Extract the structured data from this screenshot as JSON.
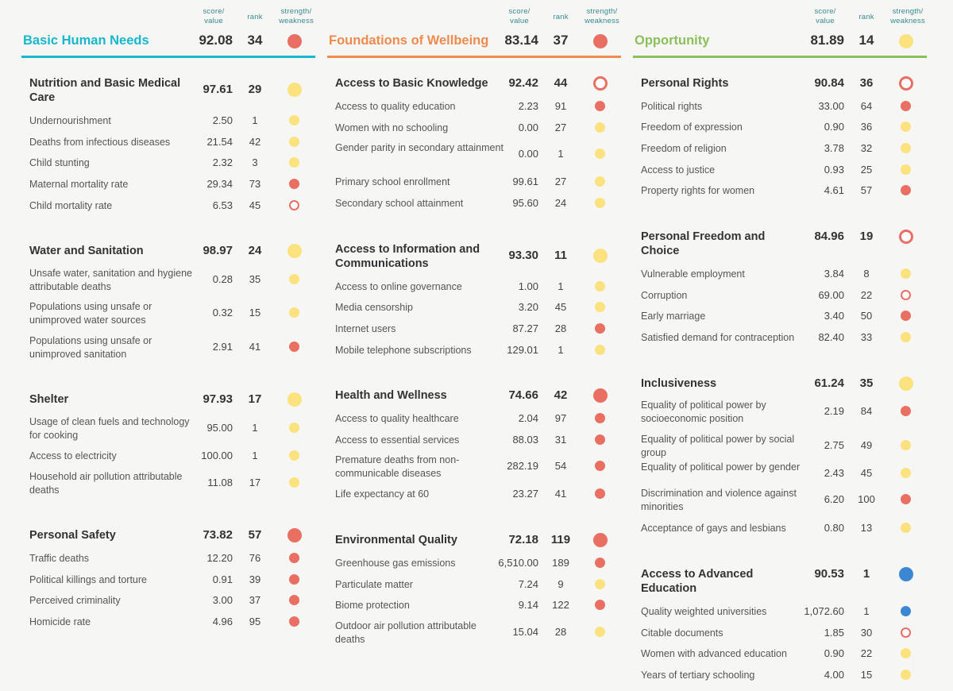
{
  "header_labels": {
    "score": "score/\nvalue",
    "rank": "rank",
    "sw": "strength/\nweakness"
  },
  "colors": {
    "bhn": "#17b7cd",
    "fow": "#ef8b4e",
    "opp": "#8bbf5b",
    "yellow": "#fce27e",
    "red": "#ea6f63",
    "blue": "#3b87d3"
  },
  "dimensions": [
    {
      "title": "Basic Human Needs",
      "score": "92.08",
      "rank": "34",
      "status": "red",
      "components": [
        {
          "title": "Nutrition and Basic Medical Care",
          "score": "97.61",
          "rank": "29",
          "status": "yellow",
          "indicators": [
            {
              "name": "Undernourishment",
              "value": "2.50",
              "rank": "1",
              "status": "yellow"
            },
            {
              "name": "Deaths from infectious diseases",
              "value": "21.54",
              "rank": "42",
              "status": "yellow"
            },
            {
              "name": "Child stunting",
              "value": "2.32",
              "rank": "3",
              "status": "yellow"
            },
            {
              "name": "Maternal mortality rate",
              "value": "29.34",
              "rank": "73",
              "status": "red"
            },
            {
              "name": "Child mortality rate",
              "value": "6.53",
              "rank": "45",
              "status": "ring"
            }
          ]
        },
        {
          "title": "Water and Sanitation",
          "score": "98.97",
          "rank": "24",
          "status": "yellow",
          "indicators": [
            {
              "name": "Unsafe water, sanitation and hygiene attributable deaths",
              "value": "0.28",
              "rank": "35",
              "status": "yellow"
            },
            {
              "name": "Populations using unsafe or unimproved water sources",
              "value": "0.32",
              "rank": "15",
              "status": "yellow"
            },
            {
              "name": "Populations using unsafe or unimproved sanitation",
              "value": "2.91",
              "rank": "41",
              "status": "red"
            }
          ]
        },
        {
          "title": "Shelter",
          "score": "97.93",
          "rank": "17",
          "status": "yellow",
          "indicators": [
            {
              "name": "Usage of clean fuels and technology for cooking",
              "value": "95.00",
              "rank": "1",
              "status": "yellow"
            },
            {
              "name": "Access to electricity",
              "value": "100.00",
              "rank": "1",
              "status": "yellow"
            },
            {
              "name": "Household air pollution attributable deaths",
              "value": "11.08",
              "rank": "17",
              "status": "yellow"
            }
          ]
        },
        {
          "title": "Personal Safety",
          "score": "73.82",
          "rank": "57",
          "status": "red",
          "indicators": [
            {
              "name": "Traffic deaths",
              "value": "12.20",
              "rank": "76",
              "status": "red"
            },
            {
              "name": "Political killings and torture",
              "value": "0.91",
              "rank": "39",
              "status": "red"
            },
            {
              "name": "Perceived criminality",
              "value": "3.00",
              "rank": "37",
              "status": "red"
            },
            {
              "name": "Homicide rate",
              "value": "4.96",
              "rank": "95",
              "status": "red"
            }
          ]
        }
      ]
    },
    {
      "title": "Foundations of Wellbeing",
      "score": "83.14",
      "rank": "37",
      "status": "red",
      "components": [
        {
          "title": "Access to Basic Knowledge",
          "score": "92.42",
          "rank": "44",
          "status": "ring",
          "indicators": [
            {
              "name": "Access to quality education",
              "value": "2.23",
              "rank": "91",
              "status": "red"
            },
            {
              "name": "Women with no schooling",
              "value": "0.00",
              "rank": "27",
              "status": "yellow"
            },
            {
              "name": "Gender parity in secondary attainment",
              "value": "0.00",
              "rank": "1",
              "status": "yellow"
            },
            {
              "name": "Primary school enrollment",
              "value": "99.61",
              "rank": "27",
              "status": "yellow"
            },
            {
              "name": "Secondary school attainment",
              "value": "95.60",
              "rank": "24",
              "status": "yellow"
            }
          ]
        },
        {
          "title": "Access to Information and Communications",
          "score": "93.30",
          "rank": "11",
          "status": "yellow",
          "indicators": [
            {
              "name": "Access to online governance",
              "value": "1.00",
              "rank": "1",
              "status": "yellow"
            },
            {
              "name": "Media censorship",
              "value": "3.20",
              "rank": "45",
              "status": "yellow"
            },
            {
              "name": "Internet users",
              "value": "87.27",
              "rank": "28",
              "status": "red"
            },
            {
              "name": "Mobile telephone subscriptions",
              "value": "129.01",
              "rank": "1",
              "status": "yellow"
            }
          ]
        },
        {
          "title": "Health and Wellness",
          "score": "74.66",
          "rank": "42",
          "status": "red",
          "indicators": [
            {
              "name": "Access to quality healthcare",
              "value": "2.04",
              "rank": "97",
              "status": "red"
            },
            {
              "name": "Access to essential services",
              "value": "88.03",
              "rank": "31",
              "status": "red"
            },
            {
              "name": "Premature deaths from non-communicable diseases",
              "value": "282.19",
              "rank": "54",
              "status": "red"
            },
            {
              "name": "Life expectancy at 60",
              "value": "23.27",
              "rank": "41",
              "status": "red"
            }
          ]
        },
        {
          "title": "Environmental Quality",
          "score": "72.18",
          "rank": "119",
          "status": "red",
          "indicators": [
            {
              "name": "Greenhouse gas emissions",
              "value": "6,510.00",
              "rank": "189",
              "status": "red"
            },
            {
              "name": "Particulate matter",
              "value": "7.24",
              "rank": "9",
              "status": "yellow"
            },
            {
              "name": "Biome protection",
              "value": "9.14",
              "rank": "122",
              "status": "red"
            },
            {
              "name": "Outdoor air pollution attributable deaths",
              "value": "15.04",
              "rank": "28",
              "status": "yellow"
            }
          ]
        }
      ]
    },
    {
      "title": "Opportunity",
      "score": "81.89",
      "rank": "14",
      "status": "yellow",
      "components": [
        {
          "title": "Personal Rights",
          "score": "90.84",
          "rank": "36",
          "status": "ring",
          "indicators": [
            {
              "name": "Political rights",
              "value": "33.00",
              "rank": "64",
              "status": "red"
            },
            {
              "name": "Freedom of expression",
              "value": "0.90",
              "rank": "36",
              "status": "yellow"
            },
            {
              "name": "Freedom of religion",
              "value": "3.78",
              "rank": "32",
              "status": "yellow"
            },
            {
              "name": "Access to justice",
              "value": "0.93",
              "rank": "25",
              "status": "yellow"
            },
            {
              "name": "Property rights for women",
              "value": "4.61",
              "rank": "57",
              "status": "red"
            }
          ]
        },
        {
          "title": "Personal Freedom and Choice",
          "score": "84.96",
          "rank": "19",
          "status": "ring",
          "indicators": [
            {
              "name": "Vulnerable employment",
              "value": "3.84",
              "rank": "8",
              "status": "yellow"
            },
            {
              "name": "Corruption",
              "value": "69.00",
              "rank": "22",
              "status": "ring"
            },
            {
              "name": "Early marriage",
              "value": "3.40",
              "rank": "50",
              "status": "red"
            },
            {
              "name": "Satisfied demand for contraception",
              "value": "82.40",
              "rank": "33",
              "status": "yellow"
            }
          ]
        },
        {
          "title": "Inclusiveness",
          "score": "61.24",
          "rank": "35",
          "status": "yellow",
          "indicators": [
            {
              "name": "Equality of political power by socioeconomic position",
              "value": "2.19",
              "rank": "84",
              "status": "red"
            },
            {
              "name": "Equality of political power by social group",
              "value": "2.75",
              "rank": "49",
              "status": "yellow"
            },
            {
              "name": "Equality of political power by gender",
              "value": "2.43",
              "rank": "45",
              "status": "yellow"
            },
            {
              "name": "Discrimination and violence against minorities",
              "value": "6.20",
              "rank": "100",
              "status": "red"
            },
            {
              "name": "Acceptance of gays and lesbians",
              "value": "0.80",
              "rank": "13",
              "status": "yellow"
            }
          ]
        },
        {
          "title": "Access to Advanced Education",
          "score": "90.53",
          "rank": "1",
          "status": "blue",
          "indicators": [
            {
              "name": "Quality weighted universities",
              "value": "1,072.60",
              "rank": "1",
              "status": "blue"
            },
            {
              "name": "Citable documents",
              "value": "1.85",
              "rank": "30",
              "status": "ring"
            },
            {
              "name": "Women with advanced education",
              "value": "0.90",
              "rank": "22",
              "status": "yellow"
            },
            {
              "name": "Years of tertiary schooling",
              "value": "4.00",
              "rank": "15",
              "status": "yellow"
            }
          ]
        }
      ]
    }
  ]
}
